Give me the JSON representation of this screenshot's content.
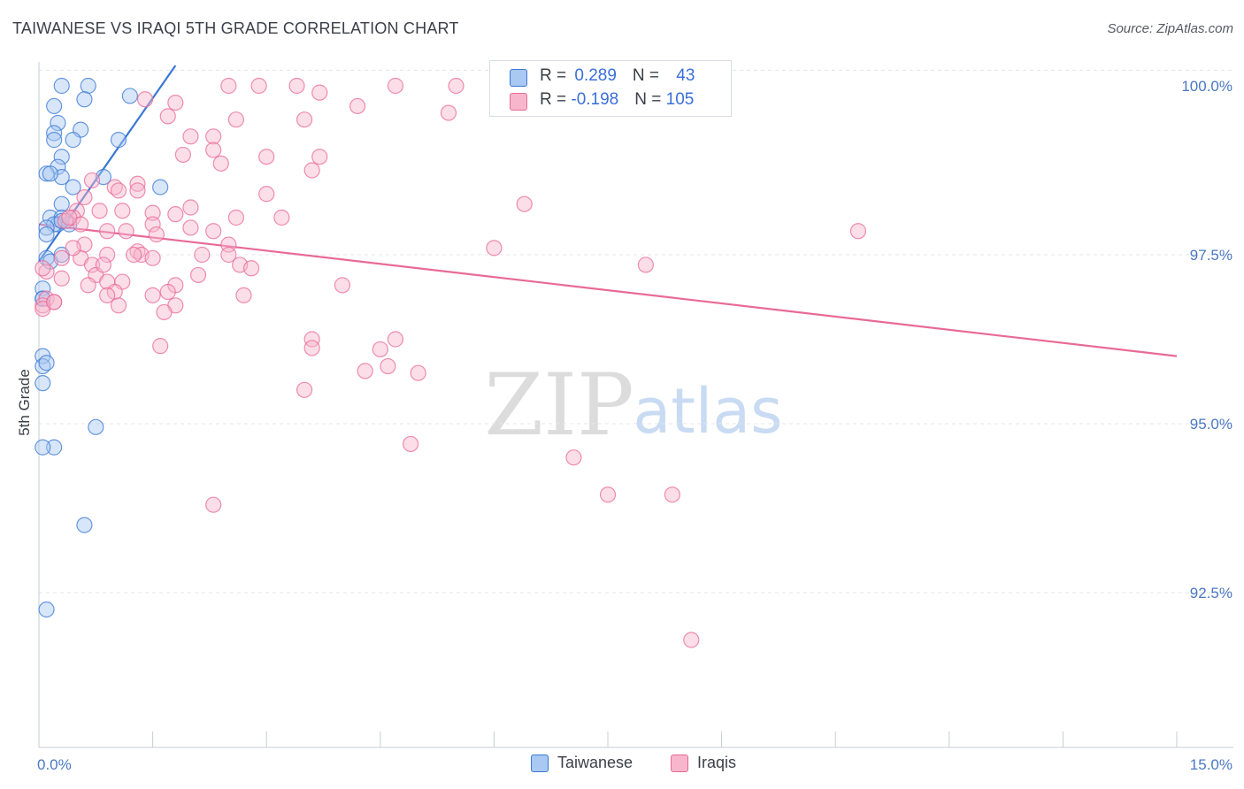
{
  "header": {
    "title": "TAIWANESE VS IRAQI 5TH GRADE CORRELATION CHART",
    "source": "Source: ZipAtlas.com"
  },
  "watermark": {
    "zip": "ZIP",
    "atlas": "atlas"
  },
  "legend": {
    "rows": [
      {
        "r_label": "R = ",
        "r_value": "0.289",
        "n_label": "N = ",
        "n_value": "43",
        "color": "#a9c8f2"
      },
      {
        "r_label": "R = ",
        "r_value": "-0.198",
        "n_label": "N = ",
        "n_value": "105",
        "color": "#f7b6cb"
      }
    ]
  },
  "bottom_legend": [
    {
      "label": "Taiwanese",
      "color": "#a9c8f2"
    },
    {
      "label": "Iraqis",
      "color": "#f7b6cb"
    }
  ],
  "chart_data": {
    "type": "scatter",
    "xlabel": "",
    "ylabel": "5th Grade",
    "xlim": [
      0,
      15
    ],
    "ylim": [
      90.5,
      100.3
    ],
    "x_tick_labels": [
      {
        "value": 0,
        "label": "0.0%"
      },
      {
        "value": 15,
        "label": "15.0%"
      }
    ],
    "y_tick_labels": [
      {
        "value": 100,
        "label": "100.0%"
      },
      {
        "value": 97.5,
        "label": "97.5%"
      },
      {
        "value": 95,
        "label": "95.0%"
      },
      {
        "value": 92.5,
        "label": "92.5%"
      }
    ],
    "grid": true,
    "series": [
      {
        "name": "Taiwanese",
        "color": "#3a78d4",
        "fill": "#a9c8f2",
        "trend": {
          "x": [
            0.0,
            1.8
          ],
          "y": [
            97.4,
            100.3
          ]
        },
        "points": [
          [
            0.3,
            100.0
          ],
          [
            0.65,
            100.0
          ],
          [
            1.2,
            99.85
          ],
          [
            0.6,
            99.8
          ],
          [
            0.2,
            99.7
          ],
          [
            0.25,
            99.45
          ],
          [
            0.55,
            99.35
          ],
          [
            0.2,
            99.3
          ],
          [
            0.45,
            99.2
          ],
          [
            0.2,
            99.2
          ],
          [
            1.05,
            99.2
          ],
          [
            0.3,
            98.95
          ],
          [
            0.25,
            98.8
          ],
          [
            0.1,
            98.7
          ],
          [
            0.3,
            98.65
          ],
          [
            0.85,
            98.65
          ],
          [
            0.45,
            98.5
          ],
          [
            1.6,
            98.5
          ],
          [
            0.3,
            98.25
          ],
          [
            0.15,
            98.05
          ],
          [
            0.3,
            98.05
          ],
          [
            0.25,
            97.95
          ],
          [
            0.4,
            97.95
          ],
          [
            0.2,
            97.95
          ],
          [
            0.1,
            97.9
          ],
          [
            0.1,
            97.8
          ],
          [
            0.1,
            97.45
          ],
          [
            0.15,
            97.4
          ],
          [
            0.05,
            97.0
          ],
          [
            0.05,
            96.85
          ],
          [
            0.05,
            96.85
          ],
          [
            0.05,
            96.0
          ],
          [
            0.05,
            95.85
          ],
          [
            0.1,
            95.9
          ],
          [
            0.05,
            95.6
          ],
          [
            0.75,
            94.95
          ],
          [
            0.2,
            94.65
          ],
          [
            0.05,
            94.65
          ],
          [
            0.6,
            93.5
          ],
          [
            0.1,
            92.25
          ],
          [
            0.3,
            97.5
          ],
          [
            0.3,
            98.0
          ],
          [
            0.15,
            98.7
          ]
        ]
      },
      {
        "name": "Iraqis",
        "color": "#e86a97",
        "fill": "#f7b6cb",
        "trend": {
          "x": [
            0.0,
            15.0
          ],
          "y": [
            97.95,
            96.0
          ]
        },
        "points": [
          [
            2.5,
            100.0
          ],
          [
            2.9,
            100.0
          ],
          [
            3.4,
            100.0
          ],
          [
            4.7,
            100.0
          ],
          [
            5.5,
            100.0
          ],
          [
            7.8,
            100.0
          ],
          [
            3.7,
            99.9
          ],
          [
            1.4,
            99.8
          ],
          [
            1.8,
            99.75
          ],
          [
            4.2,
            99.7
          ],
          [
            5.4,
            99.6
          ],
          [
            1.7,
            99.55
          ],
          [
            3.5,
            99.5
          ],
          [
            2.6,
            99.5
          ],
          [
            2.0,
            99.25
          ],
          [
            2.3,
            99.25
          ],
          [
            2.3,
            99.05
          ],
          [
            1.9,
            98.98
          ],
          [
            3.0,
            98.95
          ],
          [
            3.7,
            98.95
          ],
          [
            2.4,
            98.85
          ],
          [
            3.6,
            98.75
          ],
          [
            0.7,
            98.6
          ],
          [
            1.3,
            98.55
          ],
          [
            1.0,
            98.5
          ],
          [
            1.3,
            98.45
          ],
          [
            3.0,
            98.4
          ],
          [
            0.6,
            98.35
          ],
          [
            6.4,
            98.25
          ],
          [
            2.0,
            98.2
          ],
          [
            0.8,
            98.15
          ],
          [
            0.5,
            98.15
          ],
          [
            1.1,
            98.15
          ],
          [
            1.5,
            98.12
          ],
          [
            1.8,
            98.1
          ],
          [
            0.45,
            98.05
          ],
          [
            2.6,
            98.05
          ],
          [
            3.2,
            98.05
          ],
          [
            0.35,
            98.0
          ],
          [
            0.55,
            97.95
          ],
          [
            1.5,
            97.95
          ],
          [
            2.0,
            97.9
          ],
          [
            0.9,
            97.85
          ],
          [
            1.15,
            97.85
          ],
          [
            2.3,
            97.85
          ],
          [
            10.8,
            97.85
          ],
          [
            1.55,
            97.8
          ],
          [
            0.6,
            97.65
          ],
          [
            2.5,
            97.65
          ],
          [
            6.0,
            97.6
          ],
          [
            1.3,
            97.55
          ],
          [
            1.35,
            97.5
          ],
          [
            0.9,
            97.5
          ],
          [
            2.15,
            97.5
          ],
          [
            2.5,
            97.5
          ],
          [
            1.5,
            97.45
          ],
          [
            0.55,
            97.45
          ],
          [
            0.3,
            97.45
          ],
          [
            0.7,
            97.35
          ],
          [
            2.65,
            97.35
          ],
          [
            8.0,
            97.35
          ],
          [
            2.8,
            97.3
          ],
          [
            0.1,
            97.25
          ],
          [
            2.1,
            97.2
          ],
          [
            0.75,
            97.2
          ],
          [
            0.9,
            97.1
          ],
          [
            1.1,
            97.1
          ],
          [
            0.65,
            97.05
          ],
          [
            1.8,
            97.05
          ],
          [
            4.0,
            97.05
          ],
          [
            1.7,
            96.95
          ],
          [
            1.0,
            96.95
          ],
          [
            0.9,
            96.9
          ],
          [
            1.5,
            96.9
          ],
          [
            2.7,
            96.9
          ],
          [
            0.1,
            96.85
          ],
          [
            0.2,
            96.8
          ],
          [
            1.05,
            96.75
          ],
          [
            1.8,
            96.75
          ],
          [
            1.65,
            96.65
          ],
          [
            0.05,
            96.75
          ],
          [
            3.6,
            96.25
          ],
          [
            4.7,
            96.25
          ],
          [
            1.6,
            96.15
          ],
          [
            3.6,
            96.12
          ],
          [
            4.5,
            96.1
          ],
          [
            4.6,
            95.85
          ],
          [
            4.3,
            95.78
          ],
          [
            5.0,
            95.75
          ],
          [
            3.5,
            95.5
          ],
          [
            4.9,
            94.7
          ],
          [
            7.05,
            94.5
          ],
          [
            7.5,
            93.95
          ],
          [
            8.35,
            93.95
          ],
          [
            2.3,
            93.8
          ],
          [
            8.6,
            91.8
          ],
          [
            0.05,
            96.7
          ],
          [
            0.05,
            97.3
          ],
          [
            0.3,
            97.15
          ],
          [
            0.2,
            96.8
          ],
          [
            0.45,
            97.6
          ],
          [
            0.85,
            97.35
          ],
          [
            1.25,
            97.5
          ],
          [
            0.4,
            98.05
          ],
          [
            1.05,
            98.45
          ]
        ]
      }
    ]
  }
}
